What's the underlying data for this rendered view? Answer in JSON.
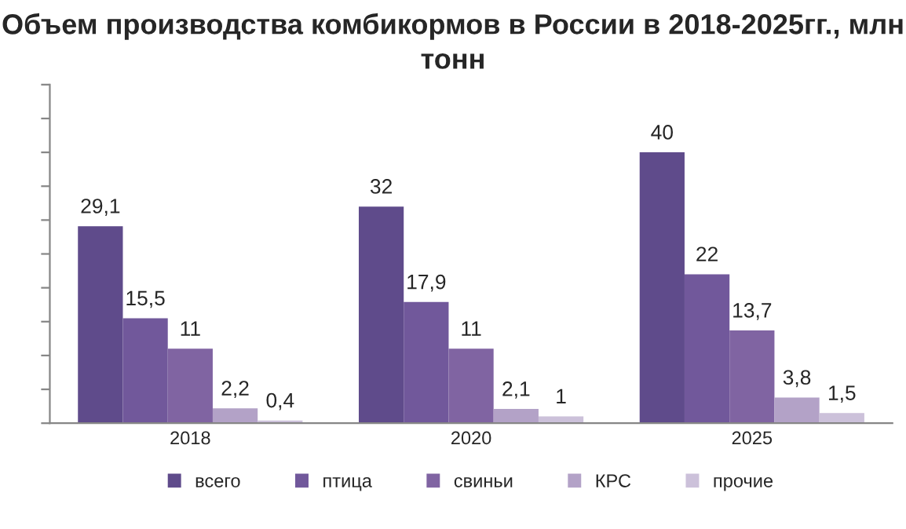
{
  "chart_data": {
    "type": "bar",
    "title": "Объем производства комбикормов в России в 2018-2025гг., млн тонн",
    "categories": [
      "2018",
      "2020",
      "2025"
    ],
    "series": [
      {
        "name": "всего",
        "color": "#5f4b8b",
        "values": [
          29.1,
          32,
          40
        ],
        "value_labels": [
          "29,1",
          "32",
          "40"
        ]
      },
      {
        "name": "птица",
        "color": "#71589b",
        "values": [
          15.5,
          17.9,
          22
        ],
        "value_labels": [
          "15,5",
          "17,9",
          "22"
        ]
      },
      {
        "name": "свиньи",
        "color": "#8064a2",
        "values": [
          11,
          11,
          13.7
        ],
        "value_labels": [
          "11",
          "11",
          "13,7"
        ]
      },
      {
        "name": "КРС",
        "color": "#b3a2c7",
        "values": [
          2.2,
          2.1,
          3.8
        ],
        "value_labels": [
          "2,2",
          "2,1",
          "3,8"
        ]
      },
      {
        "name": "прочие",
        "color": "#ccc1da",
        "values": [
          0.4,
          1,
          1.5
        ],
        "value_labels": [
          "0,4",
          "1",
          "1,5"
        ]
      }
    ],
    "ylim": [
      0,
      50
    ],
    "yticks": [
      {
        "value": 0,
        "label": null
      },
      {
        "value": 5,
        "label": null
      },
      {
        "value": 10,
        "label": null
      },
      {
        "value": 15,
        "label": null
      },
      {
        "value": 20,
        "label": null
      },
      {
        "value": 25,
        "label": null
      },
      {
        "value": 30,
        "label": null
      },
      {
        "value": 35,
        "label": null
      },
      {
        "value": 40,
        "label": null
      },
      {
        "value": 45,
        "label": null
      },
      {
        "value": 50,
        "label": null
      }
    ],
    "tick_labels": "x",
    "grid": false,
    "legend": "bottom"
  }
}
